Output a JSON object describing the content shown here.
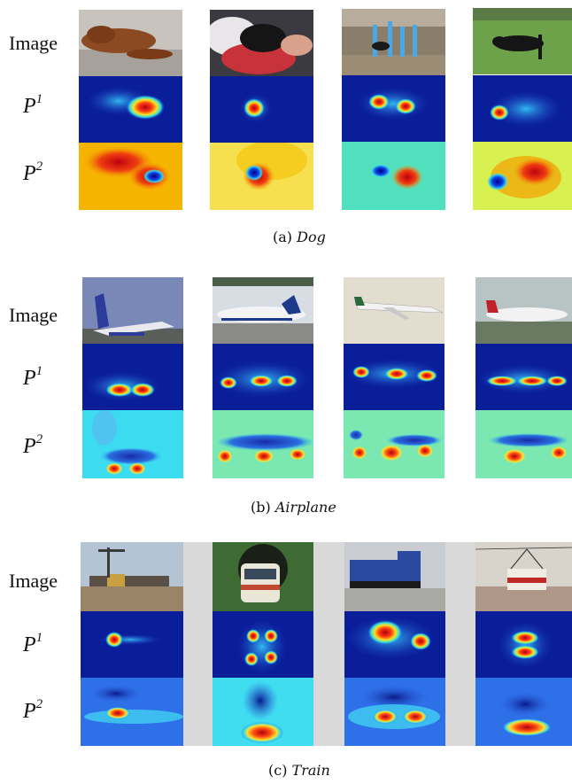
{
  "row_labels": {
    "image": "Image",
    "p": "P",
    "sup1": "1",
    "sup2": "2"
  },
  "captions": {
    "a_prefix": "(a)",
    "a_name": "Dog",
    "b_prefix": "(b)",
    "b_name": "Airplane",
    "c_prefix": "(c)",
    "c_name": "Train"
  },
  "colors": {
    "p1_background": "#0a2a9a",
    "p2_dog": "#f3b400",
    "p2_airplane": "#39d6f0",
    "p2_train": "#2a68e8",
    "hot": "#d0101a",
    "cold": "#00008a"
  }
}
